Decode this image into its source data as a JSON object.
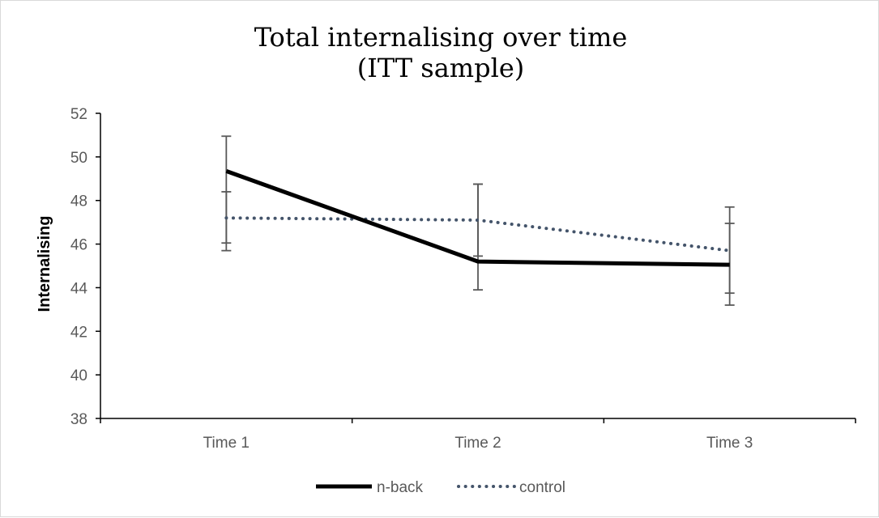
{
  "chart_data": {
    "type": "line",
    "title_lines": [
      "Total internalising over time",
      "(ITT sample)"
    ],
    "xlabel": "",
    "ylabel": "Internalising",
    "categories": [
      "Time 1",
      "Time 2",
      "Time 3"
    ],
    "ylim": [
      38,
      52
    ],
    "yticks": [
      38,
      40,
      42,
      44,
      46,
      48,
      50,
      52
    ],
    "grid": false,
    "legend_position": "bottom",
    "series": [
      {
        "name": "n-back",
        "style": "solid",
        "color": "#000000",
        "values": [
          49.35,
          45.2,
          45.05
        ],
        "error_low": [
          46.05,
          43.9,
          43.2
        ],
        "error_high": [
          50.95,
          48.75,
          46.95
        ]
      },
      {
        "name": "control",
        "style": "dotted",
        "color": "#44546a",
        "values": [
          47.2,
          47.1,
          45.7
        ],
        "error_low": [
          45.7,
          45.45,
          43.75
        ],
        "error_high": [
          48.4,
          48.75,
          47.7
        ]
      }
    ]
  }
}
